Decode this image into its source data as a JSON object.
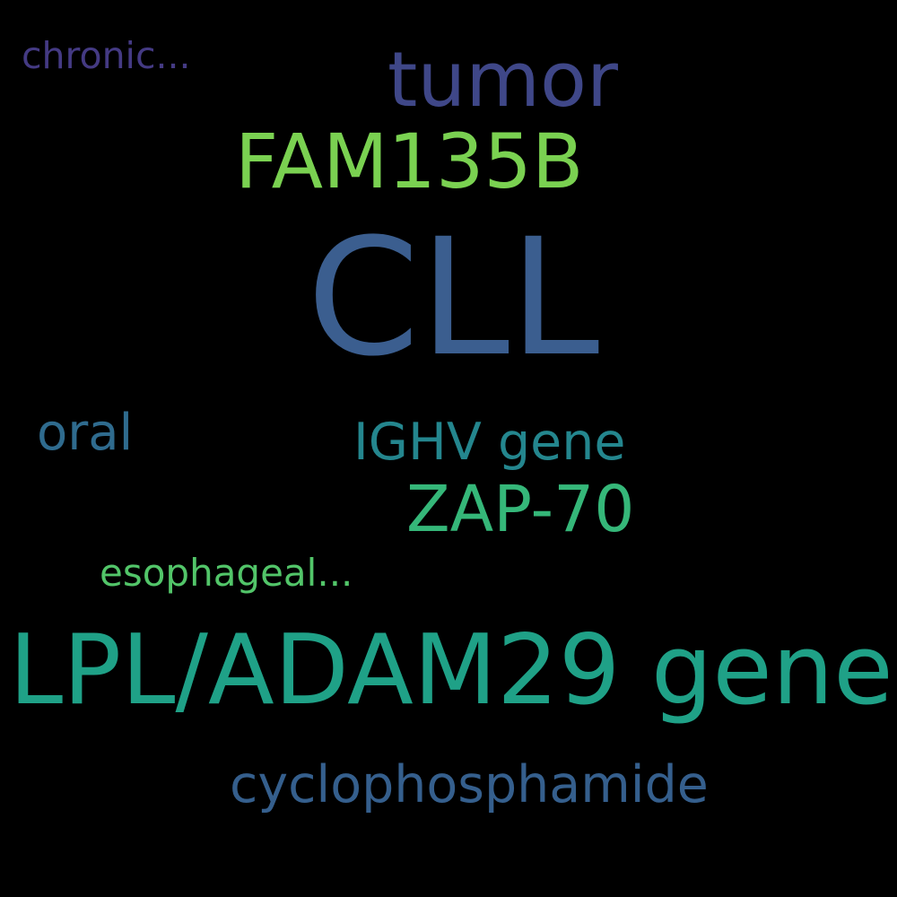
{
  "background": "#000000",
  "words": {
    "chronic": {
      "text": "chronic...",
      "color": "#443a83"
    },
    "tumor": {
      "text": "tumor",
      "color": "#3f4788"
    },
    "fam135b": {
      "text": "FAM135B",
      "color": "#7ad151"
    },
    "cll": {
      "text": "CLL",
      "color": "#3b5e8f"
    },
    "oral": {
      "text": "oral",
      "color": "#2f6b8e"
    },
    "ighv_gene": {
      "text": "IGHV gene",
      "color": "#24868e"
    },
    "zap70": {
      "text": "ZAP-70",
      "color": "#35b779"
    },
    "esophageal": {
      "text": "esophageal...",
      "color": "#52c569"
    },
    "lpl_adam29_gene": {
      "text": "LPL/ADAM29 gene",
      "color": "#1fa187"
    },
    "cyclophosphamide": {
      "text": "cyclophosphamide",
      "color": "#355f8d"
    }
  }
}
